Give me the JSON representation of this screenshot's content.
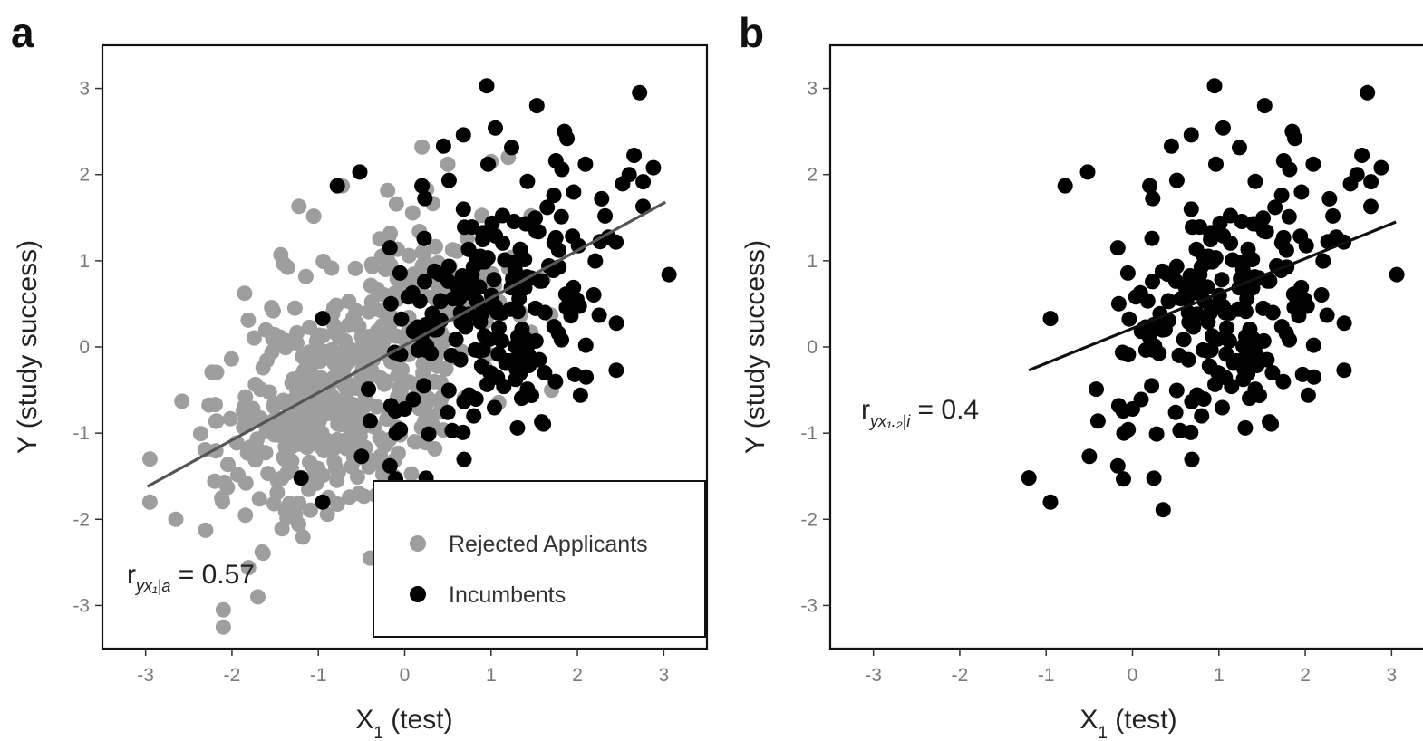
{
  "chart_data": [
    {
      "panel": "a",
      "type": "scatter",
      "xlabel": "X",
      "xlabel_sub": "1",
      "xlabel_rest": " (test)",
      "ylabel": "Y (study success)",
      "xlim": [
        -3.5,
        3.5
      ],
      "ylim": [
        -3.5,
        3.5
      ],
      "xticks": [
        -3,
        -2,
        -1,
        0,
        1,
        2,
        3
      ],
      "yticks": [
        -3,
        -2,
        -1,
        0,
        1,
        2,
        3
      ],
      "grid": false,
      "legend": {
        "placement": "bottom-right",
        "entries": [
          {
            "label": "Rejected Applicants",
            "color": "#9e9e9e"
          },
          {
            "label": "Incumbents",
            "color": "#000000"
          }
        ]
      },
      "annotation": {
        "prefix": "r",
        "sub": "yx₁|a",
        "suffix": " = 0.57"
      },
      "regression_line": {
        "color": "#555555",
        "x": [
          -2.98,
          3.02
        ],
        "y": [
          -1.62,
          1.68
        ]
      },
      "series": [
        {
          "name": "Rejected Applicants",
          "color": "#9e9e9e",
          "generated": {
            "n": 520,
            "x_center": -0.55,
            "x_sd": 0.78,
            "x_range": [
              -3.0,
              1.7
            ],
            "slope": 0.55,
            "intercept": -0.05,
            "noise_sd": 0.72,
            "seed": 7
          },
          "points": [
            [
              -2.1,
              -3.05
            ],
            [
              -2.1,
              -3.25
            ],
            [
              -1.7,
              -2.9
            ],
            [
              -2.65,
              -2.0
            ],
            [
              -2.95,
              -1.3
            ],
            [
              -2.95,
              -1.8
            ],
            [
              0.2,
              2.32
            ],
            [
              0.5,
              2.12
            ],
            [
              1.0,
              2.15
            ],
            [
              1.2,
              2.2
            ],
            [
              -0.4,
              -2.45
            ],
            [
              1.7,
              -0.5
            ]
          ]
        },
        {
          "name": "Incumbents",
          "color": "#000000",
          "generated": {
            "n": 200,
            "x_center": 0.95,
            "x_sd": 0.72,
            "x_range": [
              -0.2,
              3.05
            ],
            "slope": 0.28,
            "intercept": 0.15,
            "noise_sd": 0.7,
            "seed": 19
          },
          "points": [
            [
              -1.2,
              -1.52
            ],
            [
              -0.95,
              -1.8
            ],
            [
              -0.95,
              0.33
            ],
            [
              -0.78,
              1.87
            ],
            [
              -0.52,
              2.03
            ],
            [
              -0.5,
              -1.27
            ],
            [
              -0.42,
              -0.49
            ],
            [
              -0.4,
              -0.86
            ],
            [
              -0.17,
              1.15
            ],
            [
              -0.17,
              -1.38
            ],
            [
              -0.05,
              -0.96
            ],
            [
              0.04,
              0.58
            ],
            [
              0.2,
              1.87
            ],
            [
              0.45,
              2.33
            ],
            [
              0.68,
              2.46
            ],
            [
              0.95,
              3.03
            ],
            [
              1.05,
              2.54
            ],
            [
              1.53,
              2.8
            ],
            [
              1.85,
              2.5
            ],
            [
              1.88,
              2.42
            ],
            [
              1.82,
              2.06
            ],
            [
              1.65,
              1.62
            ],
            [
              2.6,
              2.0
            ],
            [
              2.72,
              2.95
            ],
            [
              2.88,
              2.08
            ],
            [
              2.76,
              1.63
            ],
            [
              3.06,
              0.84
            ],
            [
              2.28,
              1.72
            ],
            [
              2.32,
              1.52
            ],
            [
              2.45,
              -0.27
            ],
            [
              2.1,
              -0.35
            ],
            [
              1.97,
              -0.32
            ],
            [
              1.62,
              -0.3
            ],
            [
              0.8,
              -0.8
            ],
            [
              0.55,
              -0.97
            ],
            [
              0.5,
              -0.76
            ],
            [
              0.1,
              -0.61
            ],
            [
              -0.1,
              -1.0
            ],
            [
              0.0,
              -0.72
            ]
          ]
        }
      ]
    },
    {
      "panel": "b",
      "type": "scatter",
      "xlabel": "X",
      "xlabel_sub": "1",
      "xlabel_rest": " (test)",
      "ylabel": "Y (study success)",
      "xlim": [
        -3.5,
        3.5
      ],
      "ylim": [
        -3.5,
        3.5
      ],
      "xticks": [
        -3,
        -2,
        -1,
        0,
        1,
        2,
        3
      ],
      "yticks": [
        -3,
        -2,
        -1,
        0,
        1,
        2,
        3
      ],
      "grid": false,
      "annotation": {
        "prefix": "r",
        "sub": "yx₁.₂|i",
        "suffix": " = 0.4"
      },
      "regression_line": {
        "color": "#111111",
        "x": [
          -1.2,
          3.05
        ],
        "y": [
          -0.27,
          1.45
        ]
      },
      "series": [
        {
          "name": "Incumbents",
          "color": "#000000",
          "same_as_panel_a_series": 1
        }
      ]
    }
  ]
}
